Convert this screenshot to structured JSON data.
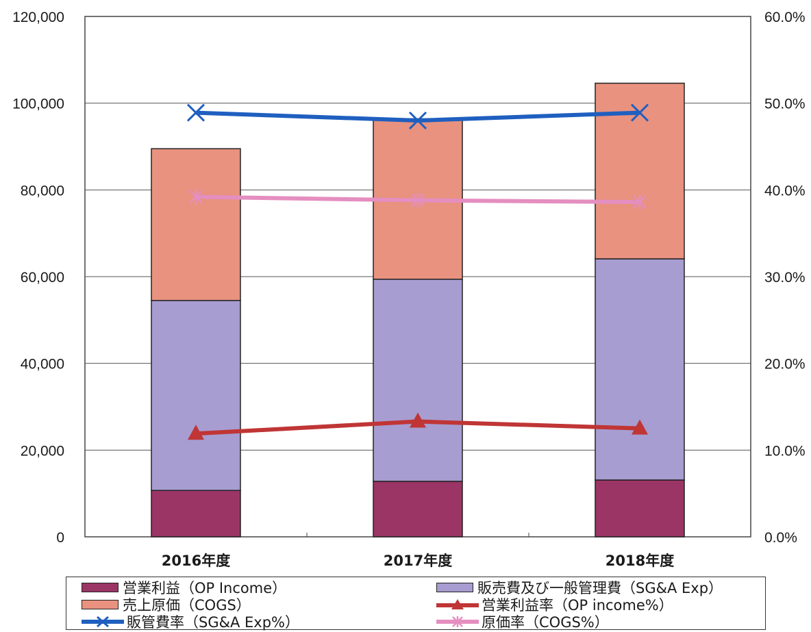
{
  "chart_data": {
    "type": "bar",
    "stacked": true,
    "categories": [
      "2016年度",
      "2017年度",
      "2018年度"
    ],
    "y_left": {
      "min": 0,
      "max": 120000,
      "ticks": [
        "0",
        "20,000",
        "40,000",
        "60,000",
        "80,000",
        "100,000",
        "120,000"
      ]
    },
    "y_right": {
      "min": 0,
      "max": 60,
      "ticks": [
        "0.0%",
        "10.0%",
        "20.0%",
        "30.0%",
        "40.0%",
        "50.0%",
        "60.0%"
      ]
    },
    "grid": true,
    "bar_series": [
      {
        "name": "営業利益（OP Income）",
        "color": "#9b3566",
        "values": [
          10700,
          12800,
          13100
        ]
      },
      {
        "name": "販売費及び一般管理費（SG&A Exp）",
        "color": "#a79dd0",
        "values": [
          43800,
          46600,
          51000
        ]
      },
      {
        "name": "売上原価（COGS）",
        "color": "#e8927f",
        "values": [
          35000,
          37000,
          40500
        ]
      }
    ],
    "line_series": [
      {
        "name": "営業利益率（OP income%）",
        "color": "#c03535",
        "marker": "triangle",
        "axis": "right",
        "values": [
          11.9,
          13.3,
          12.5
        ]
      },
      {
        "name": "販管費率（SG&A Exp%）",
        "color": "#1f5fbf",
        "marker": "x",
        "axis": "right",
        "values": [
          48.9,
          48.0,
          48.9
        ]
      },
      {
        "name": "原価率（COGS%）",
        "color": "#e58ec0",
        "marker": "asterisk",
        "axis": "right",
        "values": [
          39.2,
          38.8,
          38.6
        ]
      }
    ],
    "legend_position": "bottom"
  }
}
